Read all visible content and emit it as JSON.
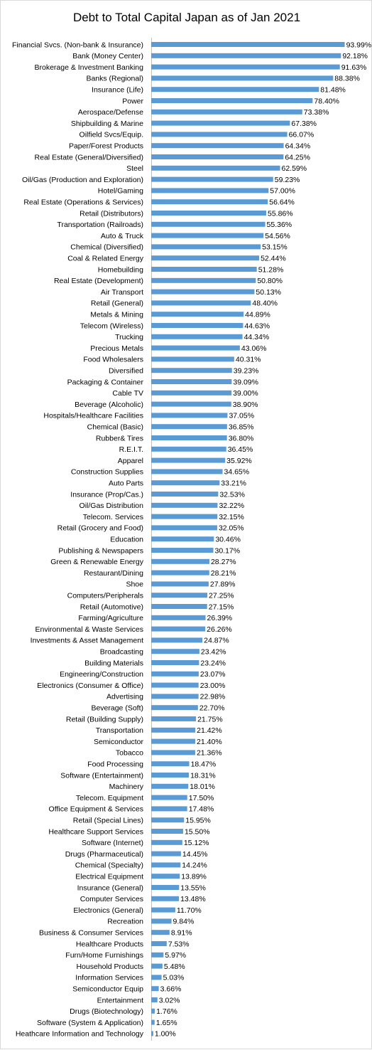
{
  "chart_data": {
    "type": "bar",
    "orientation": "horizontal",
    "title": "Debt to Total Capital Japan as of Jan 2021",
    "xlabel": "",
    "ylabel": "",
    "xlim": [
      0,
      100
    ],
    "grid": false,
    "legend": "none",
    "bar_color": "#5B9BD5",
    "categories": [
      "Financial Svcs. (Non-bank & Insurance)",
      "Bank (Money Center)",
      "Brokerage & Investment Banking",
      "Banks (Regional)",
      "Insurance (Life)",
      "Power",
      "Aerospace/Defense",
      "Shipbuilding & Marine",
      "Oilfield Svcs/Equip.",
      "Paper/Forest Products",
      "Real Estate (General/Diversified)",
      "Steel",
      "Oil/Gas (Production and Exploration)",
      "Hotel/Gaming",
      "Real Estate (Operations & Services)",
      "Retail (Distributors)",
      "Transportation (Railroads)",
      "Auto & Truck",
      "Chemical (Diversified)",
      "Coal & Related Energy",
      "Homebuilding",
      "Real Estate (Development)",
      "Air Transport",
      "Retail (General)",
      "Metals & Mining",
      "Telecom (Wireless)",
      "Trucking",
      "Precious Metals",
      "Food Wholesalers",
      "Diversified",
      "Packaging & Container",
      "Cable TV",
      "Beverage (Alcoholic)",
      "Hospitals/Healthcare Facilities",
      "Chemical (Basic)",
      "Rubber& Tires",
      "R.E.I.T.",
      "Apparel",
      "Construction Supplies",
      "Auto Parts",
      "Insurance (Prop/Cas.)",
      "Oil/Gas Distribution",
      "Telecom. Services",
      "Retail (Grocery and Food)",
      "Education",
      "Publishing & Newspapers",
      "Green & Renewable Energy",
      "Restaurant/Dining",
      "Shoe",
      "Computers/Peripherals",
      "Retail (Automotive)",
      "Farming/Agriculture",
      "Environmental & Waste Services",
      "Investments & Asset Management",
      "Broadcasting",
      "Building Materials",
      "Engineering/Construction",
      "Electronics (Consumer & Office)",
      "Advertising",
      "Beverage (Soft)",
      "Retail (Building Supply)",
      "Transportation",
      "Semiconductor",
      "Tobacco",
      "Food Processing",
      "Software (Entertainment)",
      "Machinery",
      "Telecom. Equipment",
      "Office Equipment & Services",
      "Retail (Special Lines)",
      "Healthcare Support Services",
      "Software (Internet)",
      "Drugs (Pharmaceutical)",
      "Chemical (Specialty)",
      "Electrical Equipment",
      "Insurance (General)",
      "Computer Services",
      "Electronics (General)",
      "Recreation",
      "Business & Consumer Services",
      "Healthcare Products",
      "Furn/Home Furnishings",
      "Household Products",
      "Information Services",
      "Semiconductor Equip",
      "Entertainment",
      "Drugs (Biotechnology)",
      "Software (System & Application)",
      "Heathcare Information and Technology"
    ],
    "values": [
      93.99,
      92.18,
      91.63,
      88.38,
      81.48,
      78.4,
      73.38,
      67.38,
      66.07,
      64.34,
      64.25,
      62.59,
      59.23,
      57.0,
      56.64,
      55.86,
      55.36,
      54.56,
      53.15,
      52.44,
      51.28,
      50.8,
      50.13,
      48.4,
      44.89,
      44.63,
      44.34,
      43.06,
      40.31,
      39.23,
      39.09,
      39.0,
      38.9,
      37.05,
      36.85,
      36.8,
      36.45,
      35.92,
      34.65,
      33.21,
      32.53,
      32.22,
      32.15,
      32.05,
      30.46,
      30.17,
      28.27,
      28.21,
      27.89,
      27.25,
      27.15,
      26.39,
      26.26,
      24.87,
      23.42,
      23.24,
      23.07,
      23.0,
      22.98,
      22.7,
      21.75,
      21.42,
      21.4,
      21.36,
      18.47,
      18.31,
      18.01,
      17.5,
      17.48,
      15.95,
      15.5,
      15.12,
      14.45,
      14.24,
      13.89,
      13.55,
      13.48,
      11.7,
      9.84,
      8.91,
      7.53,
      5.97,
      5.48,
      5.03,
      3.66,
      3.02,
      1.76,
      1.65,
      1.0
    ],
    "data_labels": [
      "93.99%",
      "92.18%",
      "91.63%",
      "88.38%",
      "81.48%",
      "78.40%",
      "73.38%",
      "67.38%",
      "66.07%",
      "64.34%",
      "64.25%",
      "62.59%",
      "59.23%",
      "57.00%",
      "56.64%",
      "55.86%",
      "55.36%",
      "54.56%",
      "53.15%",
      "52.44%",
      "51.28%",
      "50.80%",
      "50.13%",
      "48.40%",
      "44.89%",
      "44.63%",
      "44.34%",
      "43.06%",
      "40.31%",
      "39.23%",
      "39.09%",
      "39.00%",
      "38.90%",
      "37.05%",
      "36.85%",
      "36.80%",
      "36.45%",
      "35.92%",
      "34.65%",
      "33.21%",
      "32.53%",
      "32.22%",
      "32.15%",
      "32.05%",
      "30.46%",
      "30.17%",
      "28.27%",
      "28.21%",
      "27.89%",
      "27.25%",
      "27.15%",
      "26.39%",
      "26.26%",
      "24.87%",
      "23.42%",
      "23.24%",
      "23.07%",
      "23.00%",
      "22.98%",
      "22.70%",
      "21.75%",
      "21.42%",
      "21.40%",
      "21.36%",
      "18.47%",
      "18.31%",
      "18.01%",
      "17.50%",
      "17.48%",
      "15.95%",
      "15.50%",
      "15.12%",
      "14.45%",
      "14.24%",
      "13.89%",
      "13.55%",
      "13.48%",
      "11.70%",
      "9.84%",
      "8.91%",
      "7.53%",
      "5.97%",
      "5.48%",
      "5.03%",
      "3.66%",
      "3.02%",
      "1.76%",
      "1.65%",
      "1.00%"
    ]
  }
}
